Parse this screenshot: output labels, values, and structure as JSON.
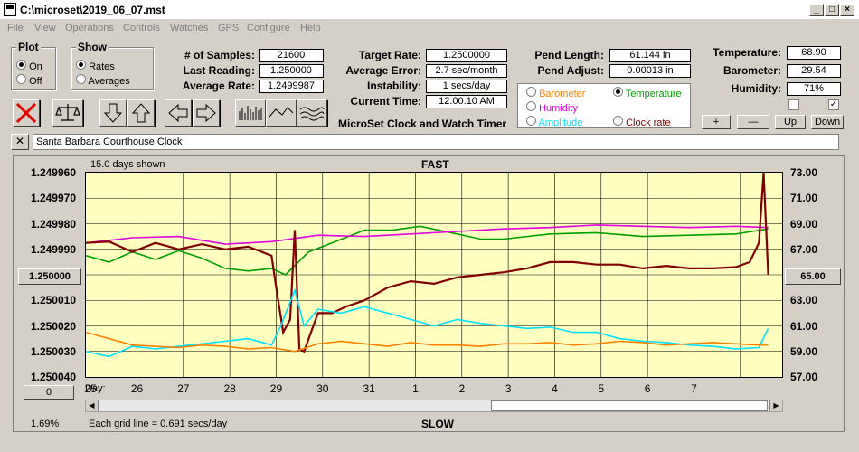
{
  "window": {
    "title": "C:\\microset\\2019_06_07.mst"
  },
  "menu": [
    "File",
    "View",
    "Operations",
    "Controls",
    "Watches",
    "GPS",
    "Configure",
    "Help"
  ],
  "plot_group": {
    "title": "Plot",
    "on": "On",
    "off": "Off"
  },
  "show_group": {
    "title": "Show",
    "rates": "Rates",
    "averages": "Averages"
  },
  "stats": {
    "samples_label": "# of Samples:",
    "samples": "21600",
    "last_label": "Last Reading:",
    "last": "1.250000",
    "avg_label": "Average Rate:",
    "avg": "1.2499987"
  },
  "targets": {
    "target_label": "Target Rate:",
    "target": "1.2500000",
    "error_label": "Average Error:",
    "error": "2.7 sec/month",
    "instab_label": "Instability:",
    "instab": "1 secs/day",
    "time_label": "Current Time:",
    "time": "12:00:10 AM",
    "caption": "MicroSet Clock and Watch Timer"
  },
  "pend": {
    "length_label": "Pend Length:",
    "length": "61.144 in",
    "adjust_label": "Pend Adjust:",
    "adjust": "0.00013 in"
  },
  "options": {
    "barometer": "Barometer",
    "temperature": "Temperature",
    "humidity": "Humidity",
    "amplitude": "Amplitude",
    "clock_rate": "Clock rate"
  },
  "env": {
    "temp_label": "Temperature:",
    "temp": "68.90",
    "baro_label": "Barometer:",
    "baro": "29.54",
    "hum_label": "Humidity:",
    "hum": "71%"
  },
  "env_buttons": {
    "plus": "+",
    "minus": "—",
    "up": "Up",
    "down": "Down"
  },
  "description": "Santa Barbara Courthouse Clock",
  "chart_header": {
    "days_shown": "15.0 days shown",
    "fast": "FAST",
    "slow": "SLOW",
    "grid": "Each grid line = 0.691 secs/day",
    "percent": "1.69%",
    "day_label": "Day:"
  },
  "left_axis_button": "1.250000",
  "right_axis_button": "65.00",
  "bottom_left_button": "0",
  "colors": {
    "plot_bg": "#ffffc0",
    "rate": "#800000",
    "temperature": "#00a000",
    "humidity": "#e000e0",
    "amplitude": "#00e0ff",
    "barometer": "#ff8000"
  },
  "chart_data": {
    "type": "line",
    "x_ticks": [
      "25",
      "26",
      "27",
      "28",
      "29",
      "30",
      "31",
      "1",
      "2",
      "3",
      "4",
      "5",
      "6",
      "7"
    ],
    "y_left_ticks": [
      "1.249960",
      "1.249970",
      "1.249980",
      "1.249990",
      "1.250000",
      "1.250010",
      "1.250020",
      "1.250030",
      "1.250040"
    ],
    "y_right_ticks": [
      "73.00",
      "71.00",
      "69.00",
      "67.00",
      "65.00",
      "63.00",
      "61.00",
      "59.00",
      "57.00"
    ],
    "xlim": [
      0,
      15
    ],
    "ylim_right": [
      57,
      73
    ],
    "series": [
      {
        "name": "Temperature",
        "color": "#00a000",
        "x": [
          0,
          0.5,
          1,
          1.5,
          2,
          2.5,
          3,
          3.5,
          4,
          4.3,
          4.8,
          5.3,
          6,
          6.6,
          7.2,
          8,
          8.5,
          9,
          10,
          11,
          12,
          13,
          14,
          14.7
        ],
        "y": [
          66.5,
          66.0,
          66.8,
          66.2,
          66.9,
          66.3,
          65.5,
          65.3,
          65.5,
          65.0,
          66.8,
          67.5,
          68.5,
          68.5,
          68.8,
          68.2,
          67.8,
          67.8,
          68.2,
          68.3,
          68.0,
          68.1,
          68.2,
          68.6
        ]
      },
      {
        "name": "Humidity",
        "color": "#e000e0",
        "x": [
          0,
          1,
          2,
          3,
          4,
          5,
          6,
          7,
          8,
          9,
          10,
          11,
          12,
          13,
          14,
          14.7
        ],
        "y": [
          67.5,
          67.9,
          68.0,
          67.4,
          67.6,
          68.1,
          68.0,
          68.2,
          68.4,
          68.6,
          68.7,
          68.9,
          68.8,
          68.7,
          68.8,
          68.7
        ]
      },
      {
        "name": "Clock rate",
        "color": "#800000",
        "x": [
          0,
          0.5,
          1,
          1.5,
          2,
          2.5,
          3,
          3.5,
          4,
          4.1,
          4.25,
          4.4,
          4.5,
          4.6,
          4.7,
          4.8,
          5,
          5.3,
          5.6,
          6,
          6.5,
          7,
          7.5,
          8,
          8.5,
          9,
          9.5,
          10,
          10.5,
          11,
          11.5,
          12,
          12.5,
          13,
          13.5,
          14,
          14.3,
          14.5,
          14.6,
          14.7
        ],
        "y": [
          67.5,
          67.6,
          66.8,
          67.5,
          67.0,
          67.4,
          67.0,
          67.2,
          66.5,
          64.0,
          60.5,
          61.5,
          68.5,
          59.2,
          59.0,
          60.0,
          62.0,
          62.0,
          62.5,
          63.0,
          64.0,
          64.5,
          64.3,
          64.8,
          65.0,
          65.2,
          65.5,
          66.0,
          66.0,
          65.8,
          65.8,
          65.5,
          65.7,
          65.5,
          65.5,
          65.6,
          66.0,
          67.5,
          73.0,
          65.0
        ]
      },
      {
        "name": "Amplitude",
        "color": "#00e0ff",
        "x": [
          0,
          0.5,
          1,
          1.5,
          2,
          2.5,
          3,
          3.5,
          4,
          4.2,
          4.5,
          4.7,
          5,
          5.5,
          6,
          6.5,
          7,
          7.5,
          8,
          8.5,
          9,
          9.5,
          10,
          10.5,
          11,
          11.5,
          12,
          12.5,
          13,
          13.5,
          14,
          14.5,
          14.7
        ],
        "y": [
          59.0,
          58.6,
          59.4,
          59.2,
          59.4,
          59.6,
          59.8,
          60.0,
          59.5,
          61.0,
          63.8,
          61.0,
          62.3,
          62.0,
          62.5,
          62.0,
          61.5,
          61.0,
          61.5,
          61.2,
          61.0,
          60.8,
          60.9,
          60.5,
          60.5,
          60.0,
          59.8,
          59.7,
          59.5,
          59.4,
          59.2,
          59.3,
          60.8
        ]
      },
      {
        "name": "Barometer",
        "color": "#ff8000",
        "x": [
          0,
          0.5,
          1,
          1.5,
          2,
          2.5,
          3,
          3.5,
          4,
          4.5,
          5,
          5.5,
          6,
          6.5,
          7,
          7.5,
          8,
          8.5,
          9,
          9.5,
          10,
          10.5,
          11,
          11.5,
          12,
          12.5,
          13,
          13.5,
          14,
          14.5,
          14.7
        ],
        "y": [
          60.5,
          60.0,
          59.5,
          59.4,
          59.3,
          59.5,
          59.4,
          59.2,
          59.3,
          59.0,
          59.6,
          59.8,
          59.6,
          59.4,
          59.7,
          59.5,
          59.5,
          59.4,
          59.6,
          59.6,
          59.7,
          59.5,
          59.6,
          59.8,
          59.7,
          59.5,
          59.6,
          59.7,
          59.6,
          59.5,
          59.5
        ]
      }
    ]
  }
}
